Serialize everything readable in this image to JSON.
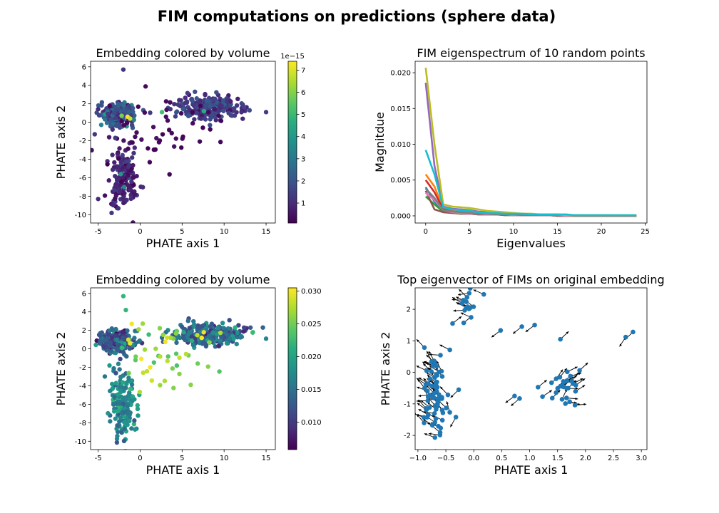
{
  "figure": {
    "title": "FIM computations on predictions (sphere data)"
  },
  "chart_data": [
    {
      "type": "scatter",
      "title": "Embedding colored by volume",
      "xlabel": "PHATE axis 1",
      "ylabel": "PHATE axis 2",
      "xlim": [
        -5.9,
        16.1
      ],
      "ylim": [
        -10.9,
        6.6
      ],
      "xticks": [
        -5,
        0,
        5,
        10,
        15
      ],
      "yticks": [
        -10,
        -8,
        -6,
        -4,
        -2,
        0,
        2,
        4,
        6
      ],
      "colormap": "viridis",
      "colorbar": {
        "range": [
          0.1,
          7.4
        ],
        "ticks": [
          1,
          2,
          3,
          4,
          5,
          6,
          7
        ],
        "offset_label": "1e−15"
      },
      "clusters": [
        {
          "cx": -2.7,
          "cy": 0.8,
          "sx": 1.0,
          "sy": 0.6,
          "n": 260,
          "cmean": 1.9,
          "cspread": 1.2
        },
        {
          "cx": 8.3,
          "cy": 1.6,
          "sx": 1.9,
          "sy": 0.6,
          "n": 260,
          "cmean": 1.4,
          "cspread": 0.8
        },
        {
          "cx": -2.1,
          "cy": -6.0,
          "sx": 0.8,
          "sy": 1.8,
          "n": 160,
          "cmean": 0.8,
          "cspread": 0.7
        },
        {
          "cx": 3.0,
          "cy": -1.0,
          "sx": 3.0,
          "sy": 1.8,
          "n": 45,
          "cmean": 0.3,
          "cspread": 0.15
        }
      ],
      "highlights": [
        {
          "x": -1.5,
          "y": 0.6,
          "c": 7.3
        },
        {
          "x": -1.2,
          "y": 0.4,
          "c": 6.9
        },
        {
          "x": -2.2,
          "y": 0.7,
          "c": 5.9
        },
        {
          "x": 7.6,
          "y": 1.2,
          "c": 4.6
        },
        {
          "x": 2.6,
          "y": 1.1,
          "c": 5.2
        },
        {
          "x": -2.3,
          "y": -5.6,
          "c": 4.0
        },
        {
          "x": -1.9,
          "y": -7.0,
          "c": 3.6
        },
        {
          "x": -2.0,
          "y": 5.7,
          "c": 1.2
        },
        {
          "x": -3.0,
          "y": -8.3,
          "c": 0.4
        },
        {
          "x": 15.0,
          "y": 1.1,
          "c": 1.4
        },
        {
          "x": -5.0,
          "y": -8.3,
          "c": 1.0
        }
      ]
    },
    {
      "type": "line",
      "title": "FIM eigenspectrum of 10 random points",
      "xlabel": "Eigenvalues",
      "ylabel": "Magnitdue",
      "xlim": [
        -1.2,
        25.2
      ],
      "ylim": [
        -0.001,
        0.0216
      ],
      "xticks": [
        0,
        5,
        10,
        15,
        20,
        25
      ],
      "yticks": [
        0.0,
        0.005,
        0.01,
        0.015,
        0.02
      ],
      "ytick_labels": [
        "0.000",
        "0.005",
        "0.010",
        "0.015",
        "0.020"
      ],
      "x": [
        0,
        1,
        2,
        3,
        4,
        5,
        6,
        7,
        8,
        9,
        10,
        11,
        12,
        13,
        14,
        15,
        16,
        17,
        18,
        19,
        20,
        21,
        22,
        23,
        24
      ],
      "series": [
        {
          "color": "#1f77b4",
          "values": [
            0.004,
            0.002,
            0.0007,
            0.0005,
            0.0004,
            0.0003,
            0.0003,
            0.0002,
            0.0002,
            0.0002,
            0.0001,
            0.0001,
            0.0001,
            0.0001,
            0.0001,
            0.0001,
            0.0001,
            0.0,
            0.0,
            0.0,
            0.0,
            0.0,
            0.0,
            0.0,
            0.0
          ]
        },
        {
          "color": "#ff7f0e",
          "values": [
            0.0058,
            0.0041,
            0.001,
            0.0007,
            0.0006,
            0.0005,
            0.0004,
            0.0003,
            0.0003,
            0.0002,
            0.0002,
            0.0002,
            0.0001,
            0.0001,
            0.0001,
            0.0001,
            0.0001,
            0.0001,
            0.0001,
            0.0,
            0.0,
            0.0,
            0.0,
            0.0,
            0.0
          ]
        },
        {
          "color": "#2ca02c",
          "values": [
            0.0027,
            0.0016,
            0.0006,
            0.0004,
            0.0003,
            0.0003,
            0.0002,
            0.0002,
            0.0002,
            0.0001,
            0.0001,
            0.0001,
            0.0001,
            0.0001,
            0.0001,
            0.0,
            0.0,
            0.0,
            0.0,
            0.0,
            0.0,
            0.0,
            0.0,
            0.0,
            0.0
          ]
        },
        {
          "color": "#d62728",
          "values": [
            0.005,
            0.0033,
            0.0009,
            0.0006,
            0.0005,
            0.0004,
            0.0003,
            0.0003,
            0.0002,
            0.0002,
            0.0002,
            0.0001,
            0.0001,
            0.0001,
            0.0001,
            0.0001,
            0.0001,
            0.0001,
            0.0,
            0.0,
            0.0,
            0.0,
            0.0,
            0.0,
            0.0
          ]
        },
        {
          "color": "#9467bd",
          "values": [
            0.0186,
            0.007,
            0.0013,
            0.001,
            0.0009,
            0.0008,
            0.0006,
            0.0005,
            0.0004,
            0.0004,
            0.0003,
            0.0003,
            0.0002,
            0.0002,
            0.0002,
            0.0002,
            0.0001,
            0.0001,
            0.0001,
            0.0001,
            0.0001,
            0.0001,
            0.0,
            0.0,
            0.0
          ]
        },
        {
          "color": "#8c564b",
          "values": [
            0.0035,
            0.0009,
            0.0005,
            0.0004,
            0.0003,
            0.0003,
            0.0002,
            0.0002,
            0.0002,
            0.0001,
            0.0001,
            0.0001,
            0.0001,
            0.0001,
            0.0001,
            0.0,
            0.0,
            0.0,
            0.0,
            0.0,
            0.0,
            0.0,
            0.0,
            0.0,
            0.0
          ]
        },
        {
          "color": "#e377c2",
          "values": [
            0.0032,
            0.0022,
            0.0008,
            0.0005,
            0.0004,
            0.0003,
            0.0003,
            0.0002,
            0.0002,
            0.0002,
            0.0001,
            0.0001,
            0.0001,
            0.0001,
            0.0001,
            0.0001,
            0.0,
            0.0,
            0.0,
            0.0,
            0.0,
            0.0,
            0.0,
            0.0,
            0.0
          ]
        },
        {
          "color": "#7f7f7f",
          "values": [
            0.0038,
            0.0025,
            0.0008,
            0.0006,
            0.0005,
            0.0004,
            0.0003,
            0.0003,
            0.0002,
            0.0002,
            0.0002,
            0.0001,
            0.0001,
            0.0001,
            0.0001,
            0.0001,
            0.0001,
            0.0,
            0.0,
            0.0,
            0.0,
            0.0,
            0.0,
            0.0,
            0.0
          ]
        },
        {
          "color": "#bcbd22",
          "values": [
            0.0207,
            0.01,
            0.0016,
            0.0013,
            0.0012,
            0.0011,
            0.0009,
            0.0007,
            0.0006,
            0.0005,
            0.0004,
            0.0003,
            0.0003,
            0.0002,
            0.0002,
            0.0002,
            0.0001,
            0.0001,
            0.0001,
            0.0001,
            0.0001,
            0.0001,
            0.0001,
            0.0001,
            0.0001
          ]
        },
        {
          "color": "#17becf",
          "values": [
            0.0092,
            0.0058,
            0.0012,
            0.0009,
            0.0008,
            0.0007,
            0.0005,
            0.0004,
            0.0004,
            0.0003,
            0.0003,
            0.0003,
            0.0002,
            0.0002,
            0.0002,
            0.0002,
            0.0002,
            0.0001,
            0.0001,
            0.0001,
            0.0001,
            0.0001,
            0.0001,
            0.0001,
            0.0001
          ]
        }
      ]
    },
    {
      "type": "scatter",
      "title": "Embedding colored by volume",
      "xlabel": "PHATE axis 1",
      "ylabel": "PHATE axis 2",
      "xlim": [
        -5.9,
        16.1
      ],
      "ylim": [
        -10.9,
        6.6
      ],
      "xticks": [
        -5,
        0,
        5,
        10,
        15
      ],
      "yticks": [
        -10,
        -8,
        -6,
        -4,
        -2,
        0,
        2,
        4,
        6
      ],
      "colormap": "viridis",
      "colorbar": {
        "range": [
          0.0058,
          0.0305
        ],
        "ticks": [
          0.01,
          0.015,
          0.02,
          0.025,
          0.03
        ],
        "tick_labels": [
          "0.010",
          "0.015",
          "0.020",
          "0.025",
          "0.030"
        ]
      },
      "clusters": [
        {
          "cx": -2.7,
          "cy": 0.8,
          "sx": 1.0,
          "sy": 0.6,
          "n": 260,
          "cmean": 0.013,
          "cspread": 0.006
        },
        {
          "cx": 8.3,
          "cy": 1.6,
          "sx": 1.9,
          "sy": 0.6,
          "n": 260,
          "cmean": 0.015,
          "cspread": 0.005
        },
        {
          "cx": -2.1,
          "cy": -6.0,
          "sx": 0.8,
          "sy": 1.8,
          "n": 160,
          "cmean": 0.017,
          "cspread": 0.004
        },
        {
          "cx": 3.0,
          "cy": -1.0,
          "sx": 3.0,
          "sy": 1.8,
          "n": 45,
          "cmean": 0.026,
          "cspread": 0.004
        }
      ],
      "highlights": [
        {
          "x": -1.2,
          "y": 0.6,
          "c": 0.03
        },
        {
          "x": -1.0,
          "y": 2.7,
          "c": 0.03
        },
        {
          "x": -1.4,
          "y": 1.0,
          "c": 0.029
        },
        {
          "x": 3.2,
          "y": 1.2,
          "c": 0.029
        },
        {
          "x": 1.2,
          "y": -2.0,
          "c": 0.03
        },
        {
          "x": -1.7,
          "y": 4.2,
          "c": 0.022
        },
        {
          "x": -2.0,
          "y": 5.7,
          "c": 0.022
        },
        {
          "x": 15.0,
          "y": 1.1,
          "c": 0.017
        }
      ]
    },
    {
      "type": "scatter",
      "title": "Top eigenvector of FIMs on original embedding",
      "xlabel": "PHATE axis 1",
      "ylabel": "PHATE axis 2",
      "xlim": [
        -1.05,
        3.1
      ],
      "ylim": [
        -2.45,
        2.68
      ],
      "xticks": [
        -1.0,
        -0.5,
        0.0,
        0.5,
        1.0,
        1.5,
        2.0,
        2.5,
        3.0
      ],
      "xtick_labels": [
        "−1.0",
        "−0.5",
        "0.0",
        "0.5",
        "1.0",
        "1.5",
        "2.0",
        "2.5",
        "3.0"
      ],
      "yticks": [
        -2,
        -1,
        0,
        1,
        2
      ],
      "marker_color": "#1f77b4",
      "arrow_color": "#000000",
      "clusters": [
        {
          "cx": -0.72,
          "cy": -0.7,
          "sx": 0.13,
          "sy": 0.75,
          "n": 70,
          "angle": 2.4
        },
        {
          "cx": -0.05,
          "cy": 2.15,
          "sx": 0.1,
          "sy": 0.22,
          "n": 14,
          "angle": 2.7
        },
        {
          "cx": 1.65,
          "cy": -0.45,
          "sx": 0.15,
          "sy": 0.3,
          "n": 26,
          "angle": 0.6
        }
      ],
      "points": [
        {
          "x": 0.48,
          "y": 1.33
        },
        {
          "x": 0.86,
          "y": 1.45
        },
        {
          "x": 1.09,
          "y": 1.5
        },
        {
          "x": 1.55,
          "y": 1.05
        },
        {
          "x": 2.72,
          "y": 1.12
        },
        {
          "x": 2.85,
          "y": 1.28
        },
        {
          "x": 0.73,
          "y": -0.75
        },
        {
          "x": 0.82,
          "y": -0.83
        },
        {
          "x": 1.15,
          "y": -0.47
        },
        {
          "x": 1.23,
          "y": -0.77
        },
        {
          "x": -0.32,
          "y": -1.42
        },
        {
          "x": -0.27,
          "y": -0.55
        },
        {
          "x": -0.18,
          "y": 1.57
        },
        {
          "x": -0.38,
          "y": 1.55
        }
      ]
    }
  ]
}
